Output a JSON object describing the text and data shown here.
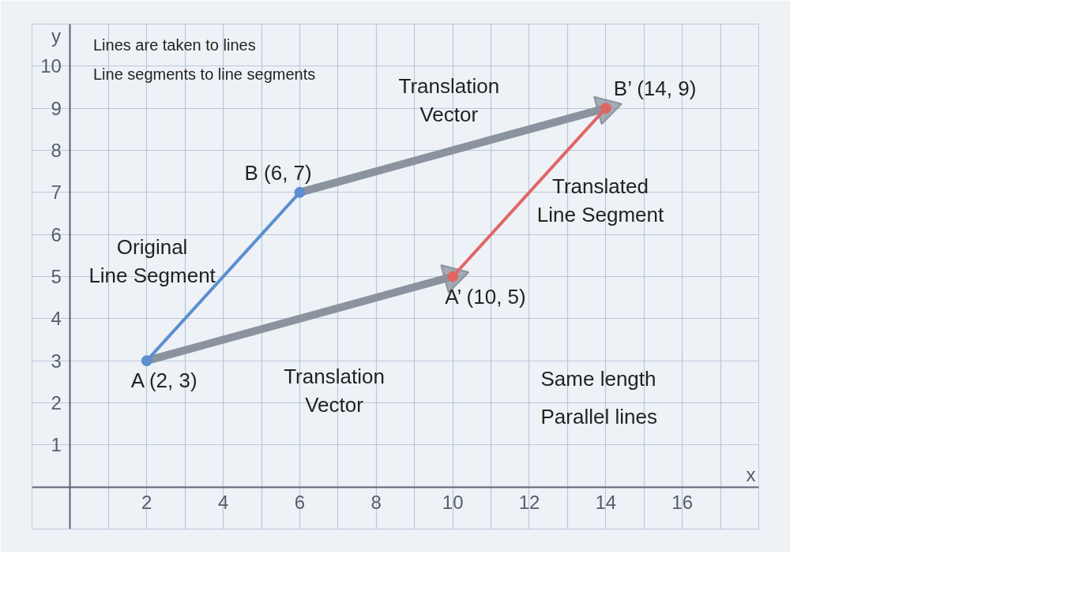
{
  "chart_data": {
    "type": "line",
    "xlabel": "x",
    "ylabel": "y",
    "xlim": [
      -1,
      18
    ],
    "ylim": [
      -1,
      11
    ],
    "xticks": [
      {
        "value": 1,
        "label": null
      },
      2,
      {
        "value": 3,
        "label": null
      },
      4,
      {
        "value": 5,
        "label": null
      },
      6,
      {
        "value": 7,
        "label": null
      },
      8,
      {
        "value": 9,
        "label": null
      },
      10,
      {
        "value": 11,
        "label": null
      },
      12,
      {
        "value": 13,
        "label": null
      },
      14,
      {
        "value": 15,
        "label": null
      },
      16,
      {
        "value": 17,
        "label": null
      }
    ],
    "yticks": [
      1,
      2,
      3,
      4,
      5,
      6,
      7,
      8,
      9,
      10
    ],
    "grid": true,
    "marker": "circle",
    "line_style": "solid",
    "series": [
      {
        "color": "#5b8fd0",
        "x": [
          2,
          6
        ],
        "values": [
          3,
          7
        ]
      },
      {
        "color": "#e06666",
        "x": [
          10,
          14
        ],
        "values": [
          5,
          9
        ]
      },
      {
        "color": "#8a939e",
        "marker": "triangle",
        "x": [
          2,
          10
        ],
        "values": [
          3,
          5
        ]
      },
      {
        "color": "#8a939e",
        "marker": "triangle",
        "x": [
          6,
          14
        ],
        "values": [
          7,
          9
        ]
      }
    ],
    "annotations": [
      "Lines are taken to lines",
      "Line segments to line segments",
      "Same length",
      "Parallel lines",
      "Translation\nVector",
      "Translation\nVector",
      {
        "text": "A (2, 3)",
        "x": 2,
        "y": 3
      },
      {
        "text": "B (6, 7)",
        "x": 6,
        "y": 7
      },
      {
        "text": "A’ (10, 5)",
        "x": 10,
        "y": 5
      },
      {
        "text": "B’ (14, 9)",
        "x": 14,
        "y": 9
      },
      {
        "text": "Original\nLine Segment",
        "x": 4,
        "y": 5
      },
      {
        "text": "Translated\nLine Segment",
        "x": 12,
        "y": 7
      }
    ]
  }
}
